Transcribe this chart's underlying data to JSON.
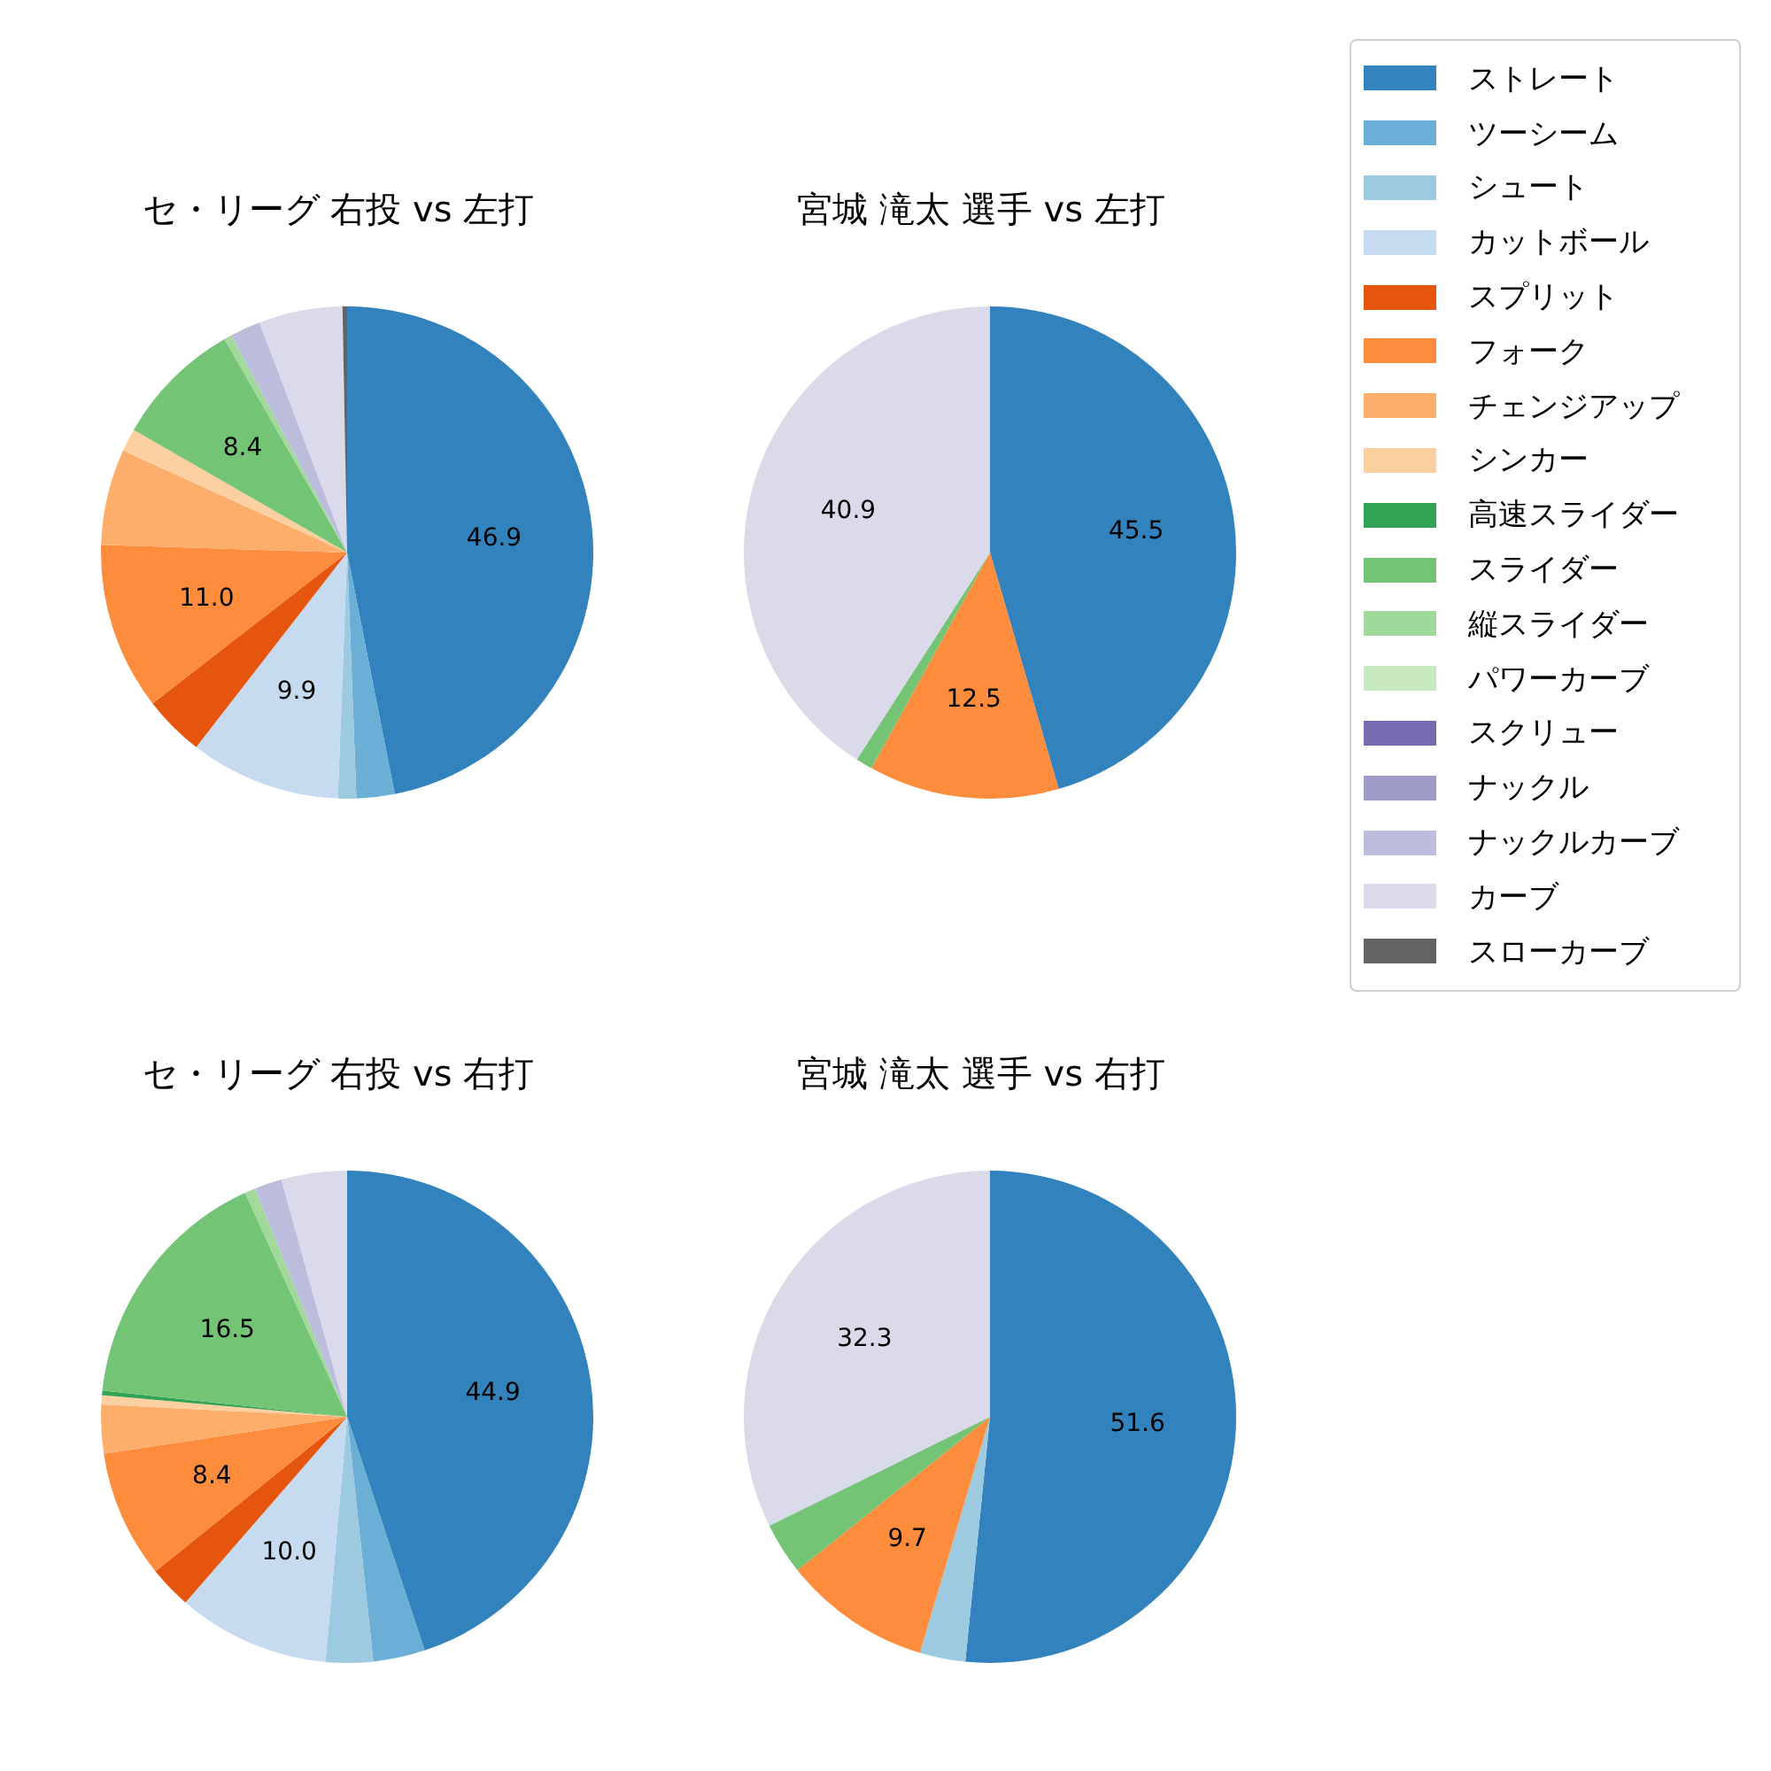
{
  "chart_data": [
    {
      "type": "pie",
      "title": "セ・リーグ 右投 vs 左打",
      "categories": [
        "ストレート",
        "ツーシーム",
        "シュート",
        "カットボール",
        "スプリット",
        "フォーク",
        "チェンジアップ",
        "シンカー",
        "高速スライダー",
        "スライダー",
        "縦スライダー",
        "パワーカーブ",
        "スクリュー",
        "ナックル",
        "ナックルカーブ",
        "カーブ",
        "スローカーブ"
      ],
      "values": [
        46.9,
        2.5,
        1.2,
        9.9,
        4.0,
        11.0,
        6.3,
        1.5,
        0,
        8.4,
        0.5,
        0,
        0,
        0,
        2.0,
        5.5,
        0.3
      ],
      "colors": [
        "#3182bd",
        "#6baed6",
        "#9ecae1",
        "#c6dbef",
        "#e6550d",
        "#fd8d3c",
        "#fdae6b",
        "#fdd0a2",
        "#31a354",
        "#74c476",
        "#a1d99b",
        "#c7e9c0",
        "#756bb1",
        "#9e9ac8",
        "#bcbddc",
        "#dadaeb",
        "#636363"
      ],
      "value_labels": [
        "46.9",
        null,
        null,
        "9.9",
        null,
        "11.0",
        null,
        null,
        null,
        "8.4",
        null,
        null,
        null,
        null,
        null,
        null,
        null
      ],
      "legend": "right"
    },
    {
      "type": "pie",
      "title": "宮城 滝太 選手 vs 左打",
      "categories": [
        null,
        null,
        null,
        null,
        null,
        null,
        null,
        null,
        null,
        null,
        null,
        null,
        null,
        null,
        null,
        null,
        null
      ],
      "values": [
        45.5,
        0,
        0,
        0,
        0,
        12.5,
        0,
        0,
        0,
        1.1,
        0,
        0,
        0,
        0,
        0,
        40.9,
        0
      ],
      "colors": [
        "#3182bd",
        "#6baed6",
        "#9ecae1",
        "#c6dbef",
        "#e6550d",
        "#fd8d3c",
        "#fdae6b",
        "#fdd0a2",
        "#31a354",
        "#74c476",
        "#a1d99b",
        "#c7e9c0",
        "#756bb1",
        "#9e9ac8",
        "#bcbddc",
        "#dadaeb",
        "#636363"
      ],
      "value_labels": [
        "45.5",
        null,
        null,
        null,
        null,
        "12.5",
        null,
        null,
        null,
        null,
        null,
        null,
        null,
        null,
        null,
        "40.9",
        null
      ]
    },
    {
      "type": "pie",
      "title": "セ・リーグ 右投 vs 右打",
      "categories": [
        null,
        null,
        null,
        null,
        null,
        null,
        null,
        null,
        null,
        null,
        null,
        null,
        null,
        null,
        null,
        null,
        null
      ],
      "values": [
        44.9,
        3.4,
        3.1,
        10.0,
        2.8,
        8.4,
        3.2,
        0.6,
        0.3,
        16.5,
        0.7,
        0,
        0,
        0,
        1.8,
        4.3,
        0
      ],
      "colors": [
        "#3182bd",
        "#6baed6",
        "#9ecae1",
        "#c6dbef",
        "#e6550d",
        "#fd8d3c",
        "#fdae6b",
        "#fdd0a2",
        "#31a354",
        "#74c476",
        "#a1d99b",
        "#c7e9c0",
        "#756bb1",
        "#9e9ac8",
        "#bcbddc",
        "#dadaeb",
        "#636363"
      ],
      "value_labels": [
        "44.9",
        null,
        null,
        "10.0",
        null,
        "8.4",
        null,
        null,
        null,
        "16.5",
        null,
        null,
        null,
        null,
        null,
        null,
        null
      ]
    },
    {
      "type": "pie",
      "title": "宮城 滝太 選手 vs 右打",
      "categories": [
        null,
        null,
        null,
        null,
        null,
        null,
        null,
        null,
        null,
        null,
        null,
        null,
        null,
        null,
        null,
        null,
        null
      ],
      "values": [
        51.6,
        0,
        3.0,
        0,
        0,
        9.7,
        0,
        0,
        0,
        3.4,
        0,
        0,
        0,
        0,
        0,
        32.3,
        0
      ],
      "colors": [
        "#3182bd",
        "#6baed6",
        "#9ecae1",
        "#c6dbef",
        "#e6550d",
        "#fd8d3c",
        "#fdae6b",
        "#fdd0a2",
        "#31a354",
        "#74c476",
        "#a1d99b",
        "#c7e9c0",
        "#756bb1",
        "#9e9ac8",
        "#bcbddc",
        "#dadaeb",
        "#636363"
      ],
      "value_labels": [
        "51.6",
        null,
        null,
        null,
        null,
        "9.7",
        null,
        null,
        null,
        null,
        null,
        null,
        null,
        null,
        null,
        "32.3",
        null
      ]
    }
  ]
}
